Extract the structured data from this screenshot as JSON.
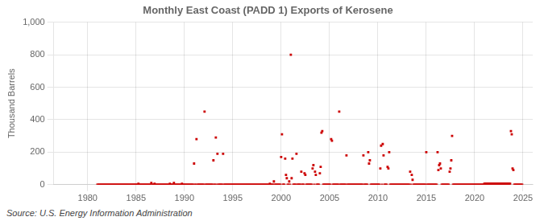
{
  "chart_data": {
    "type": "scatter",
    "title": "Monthly East Coast (PADD 1) Exports of Kerosene",
    "ylabel": "Thousand Barrels",
    "annotations": [
      "Source: U.S. Energy Information Administration"
    ],
    "color": "#cc0000",
    "marker": "square",
    "grid": true,
    "xlim": [
      1976.5,
      2026
    ],
    "xticks": [
      1980,
      1985,
      1990,
      1995,
      2000,
      2005,
      2010,
      2015,
      2020,
      2025
    ],
    "ylim": [
      0,
      1000
    ],
    "yticks": [
      0,
      200,
      400,
      600,
      800,
      {
        "value": 1000,
        "label": "1,000"
      }
    ],
    "x": [
      1981,
      1981.0833333333333,
      1981.1666666666667,
      1981.25,
      1981.3333333333333,
      1981.4166666666667,
      1981.5,
      1981.5833333333333,
      1981.6666666666667,
      1981.75,
      1981.8333333333333,
      1981.9166666666667,
      1982,
      1982.0833333333333,
      1982.1666666666667,
      1982.25,
      1982.3333333333333,
      1982.4166666666667,
      1982.5,
      1982.5833333333333,
      1982.6666666666667,
      1982.75,
      1982.8333333333333,
      1982.9166666666667,
      1983,
      1983.0833333333333,
      1983.1666666666667,
      1983.25,
      1983.3333333333333,
      1983.4166666666667,
      1983.5,
      1983.5833333333333,
      1983.6666666666667,
      1983.75,
      1983.8333333333333,
      1983.9166666666667,
      1984,
      1984.0833333333333,
      1984.1666666666667,
      1984.25,
      1984.3333333333333,
      1984.4166666666667,
      1984.5,
      1984.5833333333333,
      1984.6666666666667,
      1984.75,
      1984.8333333333333,
      1984.9166666666667,
      1985,
      1985.0833333333333,
      1985.1666666666667,
      1985.25,
      1985.3333333333333,
      1985.4166666666667,
      1985.5,
      1985.5833333333333,
      1985.6666666666667,
      1985.75,
      1985.8333333333333,
      1985.9166666666667,
      1986,
      1986.0833333333333,
      1986.1666666666667,
      1986.25,
      1986.3333333333333,
      1986.4166666666667,
      1986.5,
      1986.5833333333333,
      1986.6666666666667,
      1986.75,
      1986.8333333333333,
      1986.9166666666667,
      1987,
      1987.0833333333333,
      1987.1666666666667,
      1987.25,
      1987.3333333333333,
      1987.4166666666667,
      1987.5,
      1987.5833333333333,
      1987.6666666666667,
      1987.75,
      1987.8333333333333,
      1987.9166666666667,
      1988,
      1988.0833333333333,
      1988.1666666666667,
      1988.25,
      1988.3333333333333,
      1988.4166666666667,
      1988.5,
      1988.5833333333333,
      1988.6666666666667,
      1988.75,
      1988.8333333333333,
      1988.9166666666667,
      1989,
      1989.0833333333333,
      1989.1666666666667,
      1989.25,
      1989.3333333333333,
      1989.4166666666667,
      1989.5,
      1989.5833333333333,
      1989.6666666666667,
      1989.75,
      1989.8333333333333,
      1989.9166666666667,
      1990,
      1990.0833333333333,
      1990.1666666666667,
      1990.25,
      1990.3333333333333,
      1990.4166666666667,
      1990.5,
      1990.5833333333333,
      1990.6666666666667,
      1990.75,
      1990.8333333333333,
      1990.9166666666667,
      1991,
      1991.0833333333333,
      1991.1666666666667,
      1991.25,
      1991.3333333333333,
      1991.4166666666667,
      1991.5,
      1991.5833333333333,
      1991.6666666666667,
      1991.75,
      1991.8333333333333,
      1991.9166666666667,
      1992,
      1992.0833333333333,
      1992.1666666666667,
      1992.25,
      1992.3333333333333,
      1992.4166666666667,
      1992.5,
      1992.5833333333333,
      1992.6666666666667,
      1992.75,
      1992.8333333333333,
      1992.9166666666667,
      1993,
      1993.0833333333333,
      1993.1666666666667,
      1993.25,
      1993.3333333333333,
      1993.4166666666667,
      1993.5,
      1993.5833333333333,
      1993.6666666666667,
      1993.75,
      1993.8333333333333,
      1993.9166666666667,
      1994,
      1994.0833333333333,
      1994.1666666666667,
      1994.25,
      1994.3333333333333,
      1994.4166666666667,
      1994.5,
      1994.5833333333333,
      1994.6666666666667,
      1994.75,
      1994.8333333333333,
      1994.9166666666667,
      1995,
      1995.0833333333333,
      1995.1666666666667,
      1995.25,
      1995.3333333333333,
      1995.4166666666667,
      1995.5,
      1995.5833333333333,
      1995.6666666666667,
      1995.75,
      1995.8333333333333,
      1995.9166666666667,
      1996,
      1996.0833333333333,
      1996.1666666666667,
      1996.25,
      1996.3333333333333,
      1996.4166666666667,
      1996.5,
      1996.5833333333333,
      1996.6666666666667,
      1996.75,
      1996.8333333333333,
      1996.9166666666667,
      1997,
      1997.0833333333333,
      1997.1666666666667,
      1997.25,
      1997.3333333333333,
      1997.4166666666667,
      1997.5,
      1997.5833333333333,
      1997.6666666666667,
      1997.75,
      1997.8333333333333,
      1997.9166666666667,
      1998,
      1998.0833333333333,
      1998.1666666666667,
      1998.25,
      1998.3333333333333,
      1998.4166666666667,
      1998.5,
      1998.5833333333333,
      1998.6666666666667,
      1998.75,
      1998.8333333333333,
      1998.9166666666667,
      1999,
      1999.0833333333333,
      1999.1666666666667,
      1999.25,
      1999.3333333333333,
      1999.4166666666667,
      1999.5,
      1999.5833333333333,
      1999.6666666666667,
      1999.75,
      1999.8333333333333,
      1999.9166666666667,
      2000,
      2000.0833333333333,
      2000.1666666666667,
      2000.25,
      2000.3333333333333,
      2000.4166666666667,
      2000.5,
      2000.5833333333333,
      2000.6666666666667,
      2000.75,
      2000.8333333333333,
      2000.9166666666667,
      2001,
      2001.0833333333333,
      2001.1666666666667,
      2001.25,
      2001.3333333333333,
      2001.4166666666667,
      2001.5,
      2001.5833333333333,
      2001.6666666666667,
      2001.75,
      2001.8333333333333,
      2001.9166666666667,
      2002,
      2002.0833333333333,
      2002.1666666666667,
      2002.25,
      2002.3333333333333,
      2002.4166666666667,
      2002.5,
      2002.5833333333333,
      2002.6666666666667,
      2002.75,
      2002.8333333333333,
      2002.9166666666667,
      2003,
      2003.0833333333333,
      2003.1666666666667,
      2003.25,
      2003.3333333333333,
      2003.4166666666667,
      2003.5,
      2003.5833333333333,
      2003.6666666666667,
      2003.75,
      2003.8333333333333,
      2003.9166666666667,
      2004,
      2004.0833333333333,
      2004.1666666666667,
      2004.25,
      2004.3333333333333,
      2004.4166666666667,
      2004.5,
      2004.5833333333333,
      2004.6666666666667,
      2004.75,
      2004.8333333333333,
      2004.9166666666667,
      2005,
      2005.0833333333333,
      2005.1666666666667,
      2005.25,
      2005.3333333333333,
      2005.4166666666667,
      2005.5,
      2005.5833333333333,
      2005.6666666666667,
      2005.75,
      2005.8333333333333,
      2005.9166666666667,
      2006,
      2006.0833333333333,
      2006.1666666666667,
      2006.25,
      2006.3333333333333,
      2006.4166666666667,
      2006.5,
      2006.5833333333333,
      2006.6666666666667,
      2006.75,
      2006.8333333333333,
      2006.9166666666667,
      2007,
      2007.0833333333333,
      2007.1666666666667,
      2007.25,
      2007.3333333333333,
      2007.4166666666667,
      2007.5,
      2007.5833333333333,
      2007.6666666666667,
      2007.75,
      2007.8333333333333,
      2007.9166666666667,
      2008,
      2008.0833333333333,
      2008.1666666666667,
      2008.25,
      2008.3333333333333,
      2008.4166666666667,
      2008.5,
      2008.5833333333333,
      2008.6666666666667,
      2008.75,
      2008.8333333333333,
      2008.9166666666667,
      2009,
      2009.0833333333333,
      2009.1666666666667,
      2009.25,
      2009.3333333333333,
      2009.4166666666667,
      2009.5,
      2009.5833333333333,
      2009.6666666666667,
      2009.75,
      2009.8333333333333,
      2009.9166666666667,
      2010,
      2010.0833333333333,
      2010.1666666666667,
      2010.25,
      2010.3333333333333,
      2010.4166666666667,
      2010.5,
      2010.5833333333333,
      2010.6666666666667,
      2010.75,
      2010.8333333333333,
      2010.9166666666667,
      2011,
      2011.0833333333333,
      2011.1666666666667,
      2011.25,
      2011.3333333333333,
      2011.4166666666667,
      2011.5,
      2011.5833333333333,
      2011.6666666666667,
      2011.75,
      2011.8333333333333,
      2011.9166666666667,
      2012,
      2012.0833333333333,
      2012.1666666666667,
      2012.25,
      2012.3333333333333,
      2012.4166666666667,
      2012.5,
      2012.5833333333333,
      2012.6666666666667,
      2012.75,
      2012.8333333333333,
      2012.9166666666667,
      2013,
      2013.0833333333333,
      2013.1666666666667,
      2013.25,
      2013.3333333333333,
      2013.4166666666667,
      2013.5,
      2013.5833333333333,
      2013.6666666666667,
      2013.75,
      2013.8333333333333,
      2013.9166666666667,
      2014,
      2014.0833333333333,
      2014.1666666666667,
      2014.25,
      2014.3333333333333,
      2014.4166666666667,
      2014.5,
      2014.5833333333333,
      2014.6666666666667,
      2014.75,
      2014.8333333333333,
      2014.9166666666667,
      2015,
      2015.0833333333333,
      2015.1666666666667,
      2015.25,
      2015.3333333333333,
      2015.4166666666667,
      2015.5,
      2015.5833333333333,
      2015.6666666666667,
      2015.75,
      2015.8333333333333,
      2015.9166666666667,
      2016,
      2016.0833333333333,
      2016.1666666666667,
      2016.25,
      2016.3333333333333,
      2016.4166666666667,
      2016.5,
      2016.5833333333333,
      2016.6666666666667,
      2016.75,
      2016.8333333333333,
      2016.9166666666667,
      2017,
      2017.0833333333333,
      2017.1666666666667,
      2017.25,
      2017.3333333333333,
      2017.4166666666667,
      2017.5,
      2017.5833333333333,
      2017.6666666666667,
      2017.75,
      2017.8333333333333,
      2017.9166666666667,
      2018,
      2018.0833333333333,
      2018.1666666666667,
      2018.25,
      2018.3333333333333,
      2018.4166666666667,
      2018.5,
      2018.5833333333333,
      2018.6666666666667,
      2018.75,
      2018.8333333333333,
      2018.9166666666667,
      2019,
      2019.0833333333333,
      2019.1666666666667,
      2019.25,
      2019.3333333333333,
      2019.4166666666667,
      2019.5,
      2019.5833333333333,
      2019.6666666666667,
      2019.75,
      2019.8333333333333,
      2019.9166666666667,
      2020,
      2020.0833333333333,
      2020.1666666666667,
      2020.25,
      2020.3333333333333,
      2020.4166666666667,
      2020.5,
      2020.5833333333333,
      2020.6666666666667,
      2020.75,
      2020.8333333333333,
      2020.9166666666667,
      2021,
      2021.0833333333333,
      2021.1666666666667,
      2021.25,
      2021.3333333333333,
      2021.4166666666667,
      2021.5,
      2021.5833333333333,
      2021.6666666666667,
      2021.75,
      2021.8333333333333,
      2021.9166666666667,
      2022,
      2022.0833333333333,
      2022.1666666666667,
      2022.25,
      2022.3333333333333,
      2022.4166666666667,
      2022.5,
      2022.5833333333333,
      2022.6666666666667,
      2022.75,
      2022.8333333333333,
      2022.9166666666667,
      2023,
      2023.0833333333333,
      2023.1666666666667,
      2023.25,
      2023.3333333333333,
      2023.4166666666667,
      2023.5,
      2023.5833333333333,
      2023.6666666666667,
      2023.75,
      2023.8333333333333,
      2023.9166666666667,
      2024,
      2024.0833333333333,
      2024.1666666666667,
      2024.25,
      2024.3333333333333,
      2024.4166666666667,
      2024.5,
      2024.5833333333333,
      2024.6666666666667,
      2024.75,
      2024.8333333333333,
      2024.9166666666667
    ],
    "values": [
      0,
      0,
      0,
      0,
      0,
      0,
      0,
      0,
      0,
      0,
      0,
      0,
      0,
      0,
      0,
      0,
      0,
      0,
      0,
      0,
      0,
      0,
      0,
      0,
      0,
      0,
      0,
      0,
      0,
      0,
      0,
      0,
      0,
      0,
      0,
      0,
      0,
      0,
      0,
      0,
      0,
      0,
      0,
      0,
      0,
      0,
      0,
      0,
      0,
      0,
      0,
      5,
      0,
      0,
      0,
      0,
      0,
      0,
      0,
      0,
      0,
      0,
      0,
      0,
      0,
      0,
      0,
      10,
      0,
      0,
      0,
      5,
      0,
      0,
      0,
      0,
      0,
      0,
      0,
      0,
      0,
      0,
      0,
      0,
      0,
      0,
      0,
      0,
      0,
      0,
      5,
      0,
      0,
      0,
      0,
      10,
      0,
      0,
      0,
      0,
      0,
      0,
      0,
      0,
      0,
      5,
      0,
      0,
      0,
      0,
      0,
      0,
      0,
      0,
      0,
      0,
      0,
      0,
      0,
      0,
      130,
      0,
      0,
      280,
      0,
      0,
      0,
      0,
      0,
      0,
      0,
      0,
      0,
      450,
      0,
      0,
      0,
      0,
      0,
      0,
      0,
      0,
      0,
      0,
      150,
      0,
      0,
      290,
      0,
      190,
      0,
      0,
      0,
      0,
      0,
      0,
      190,
      0,
      0,
      0,
      0,
      0,
      0,
      0,
      0,
      0,
      0,
      0,
      0,
      0,
      0,
      0,
      0,
      0,
      0,
      0,
      0,
      0,
      0,
      0,
      0,
      0,
      0,
      0,
      0,
      0,
      0,
      0,
      0,
      0,
      0,
      0,
      0,
      0,
      0,
      0,
      0,
      0,
      0,
      0,
      0,
      0,
      0,
      0,
      0,
      0,
      0,
      0,
      0,
      0,
      0,
      0,
      0,
      0,
      5,
      0,
      0,
      0,
      0,
      20,
      0,
      0,
      0,
      0,
      0,
      0,
      0,
      0,
      170,
      310,
      0,
      0,
      0,
      160,
      60,
      40,
      0,
      0,
      20,
      0,
      800,
      40,
      160,
      0,
      0,
      0,
      0,
      190,
      0,
      0,
      0,
      0,
      0,
      80,
      0,
      0,
      0,
      70,
      60,
      0,
      0,
      0,
      0,
      0,
      0,
      0,
      0,
      100,
      120,
      0,
      80,
      60,
      0,
      0,
      0,
      0,
      70,
      110,
      320,
      330,
      0,
      0,
      0,
      0,
      0,
      0,
      0,
      0,
      0,
      0,
      280,
      270,
      0,
      0,
      0,
      0,
      0,
      0,
      0,
      0,
      450,
      0,
      0,
      0,
      0,
      0,
      0,
      0,
      0,
      180,
      0,
      0,
      0,
      0,
      0,
      0,
      0,
      0,
      0,
      0,
      0,
      0,
      0,
      0,
      0,
      0,
      0,
      0,
      0,
      0,
      180,
      0,
      0,
      0,
      0,
      0,
      200,
      130,
      150,
      0,
      0,
      0,
      0,
      0,
      0,
      0,
      0,
      0,
      0,
      0,
      0,
      100,
      240,
      0,
      250,
      180,
      0,
      0,
      0,
      0,
      110,
      100,
      200,
      0,
      0,
      0,
      0,
      0,
      0,
      0,
      0,
      0,
      0,
      0,
      0,
      0,
      0,
      0,
      0,
      0,
      0,
      0,
      0,
      0,
      0,
      0,
      0,
      0,
      80,
      0,
      60,
      30,
      0,
      0,
      0,
      0,
      0,
      0,
      0,
      0,
      0,
      0,
      0,
      0,
      0,
      0,
      0,
      0,
      200,
      0,
      0,
      0,
      0,
      0,
      0,
      0,
      0,
      0,
      0,
      0,
      0,
      0,
      200,
      90,
      120,
      130,
      100,
      0,
      0,
      0,
      0,
      0,
      0,
      0,
      0,
      0,
      0,
      80,
      100,
      150,
      300,
      0,
      0,
      0,
      0,
      0,
      0,
      0,
      0,
      0,
      0,
      0,
      0,
      0,
      0,
      0,
      0,
      0,
      0,
      0,
      0,
      0,
      0,
      0,
      0,
      0,
      0,
      0,
      0,
      0,
      0,
      0,
      0,
      0,
      0,
      0,
      0,
      0,
      0,
      0,
      5,
      5,
      5,
      5,
      5,
      5,
      5,
      5,
      5,
      5,
      5,
      5,
      5,
      5,
      5,
      5,
      5,
      5,
      5,
      5,
      5,
      5,
      5,
      5,
      5,
      5,
      5,
      5,
      5,
      5,
      5,
      5,
      5,
      330,
      310,
      100,
      90,
      0,
      0,
      0,
      0,
      0,
      0,
      0,
      0,
      0,
      0,
      0
    ]
  }
}
